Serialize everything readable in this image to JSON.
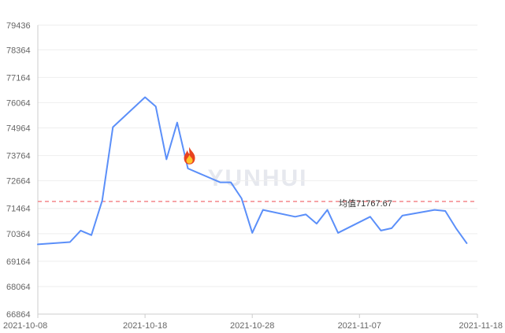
{
  "chart_data": {
    "type": "line",
    "title": "",
    "xlabel": "",
    "ylabel": "",
    "ylim": [
      66864,
      79436
    ],
    "y_ticks": [
      66864,
      68064,
      69164,
      70364,
      71464,
      72664,
      73764,
      74964,
      76064,
      77164,
      78364,
      79436
    ],
    "x_ticks": [
      "2021-10-08",
      "2021-10-18",
      "2021-10-28",
      "2021-11-07",
      "2021-11-18"
    ],
    "grid": "horizontal",
    "watermark": "YUNHUI",
    "series": [
      {
        "color": "#5b8ff9",
        "points": [
          [
            "2021-10-08",
            69900
          ],
          [
            "2021-10-11",
            70000
          ],
          [
            "2021-10-12",
            70500
          ],
          [
            "2021-10-13",
            70300
          ],
          [
            "2021-10-14",
            71800
          ],
          [
            "2021-10-15",
            75000
          ],
          [
            "2021-10-18",
            76300
          ],
          [
            "2021-10-19",
            75900
          ],
          [
            "2021-10-20",
            73600
          ],
          [
            "2021-10-21",
            75200
          ],
          [
            "2021-10-22",
            73200
          ],
          [
            "2021-10-25",
            72600
          ],
          [
            "2021-10-26",
            72600
          ],
          [
            "2021-10-27",
            71900
          ],
          [
            "2021-10-28",
            70400
          ],
          [
            "2021-10-29",
            71400
          ],
          [
            "2021-11-01",
            71100
          ],
          [
            "2021-11-02",
            71200
          ],
          [
            "2021-11-03",
            70800
          ],
          [
            "2021-11-04",
            71400
          ],
          [
            "2021-11-05",
            70400
          ],
          [
            "2021-11-08",
            71100
          ],
          [
            "2021-11-09",
            70500
          ],
          [
            "2021-11-10",
            70600
          ],
          [
            "2021-11-11",
            71150
          ],
          [
            "2021-11-14",
            71400
          ],
          [
            "2021-11-15",
            71350
          ],
          [
            "2021-11-16",
            70600
          ],
          [
            "2021-11-17",
            69950
          ]
        ]
      }
    ],
    "average": {
      "value": 71767.67,
      "label": "均值71767.67",
      "color": "#f4868a"
    },
    "marker": {
      "icon": "fire-icon",
      "date": "2021-10-22",
      "value": 73760
    }
  }
}
